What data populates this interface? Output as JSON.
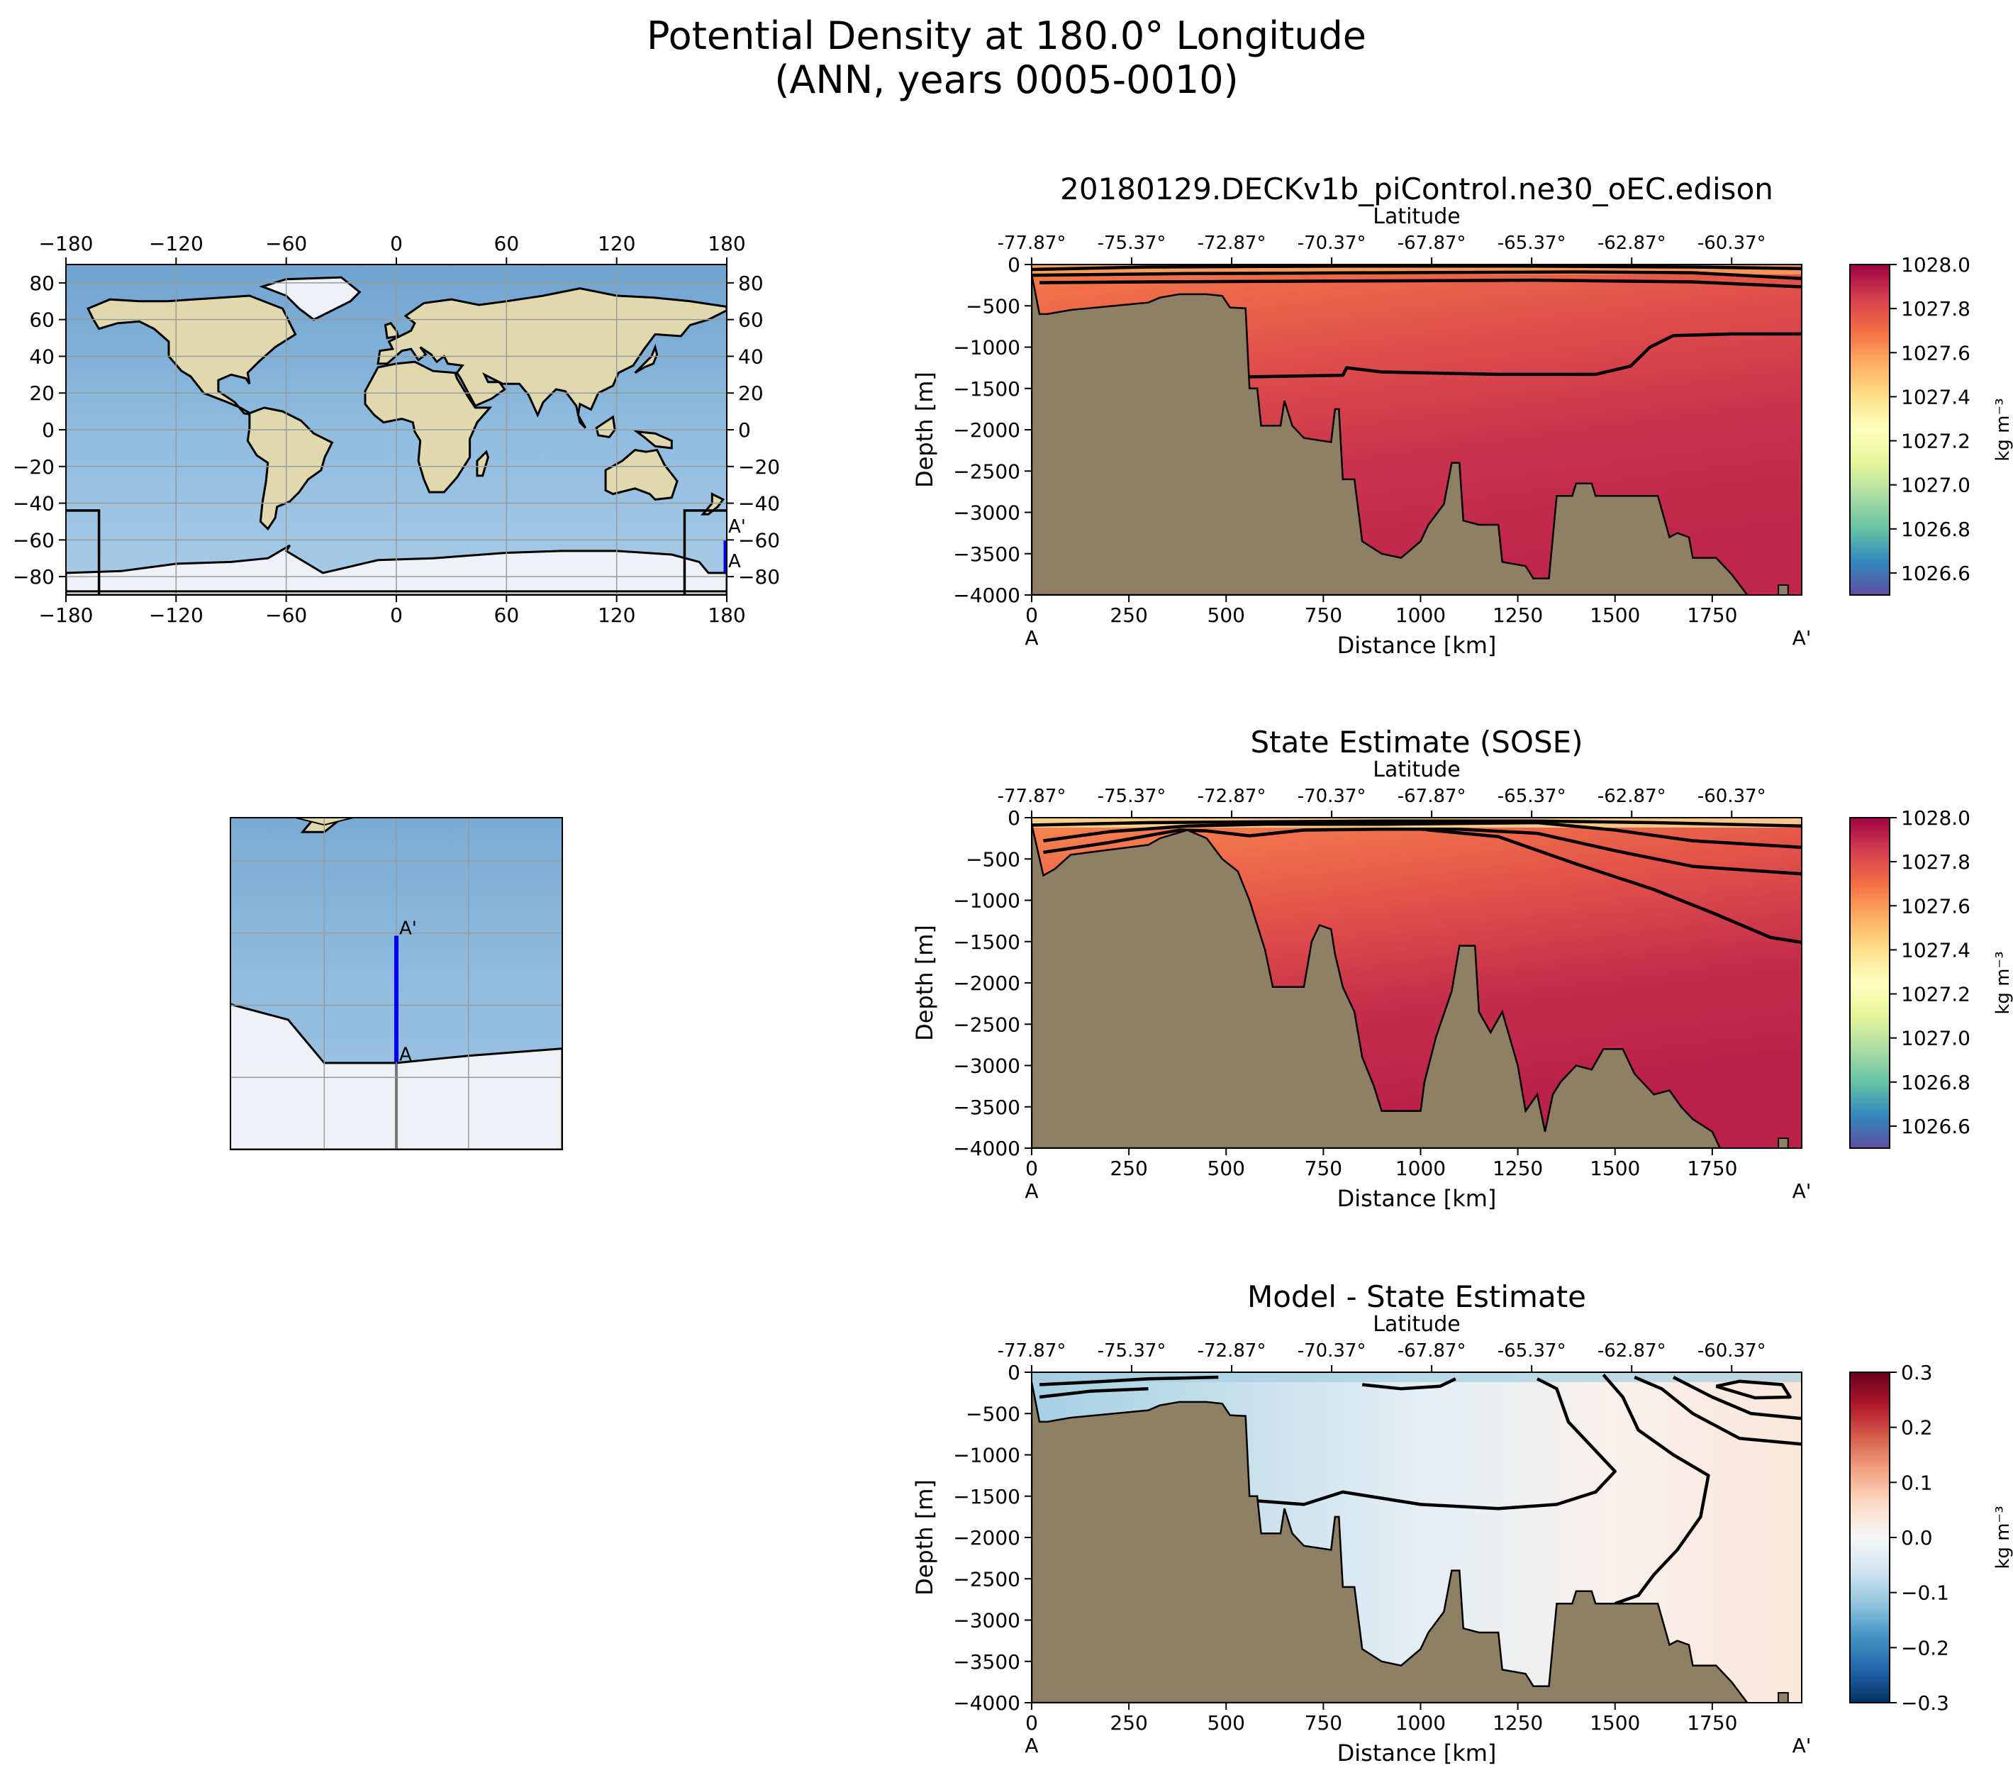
{
  "figure": {
    "title_line1": "Potential Density at 180.0° Longitude",
    "title_line2": "(ANN, years 0005-0010)",
    "colors": {
      "land_bathy": "#8f7f65",
      "ocean_map": "#86b4d8",
      "section_line": "#0000ee",
      "frame": "#000000"
    }
  },
  "chart_data": [
    {
      "type": "map",
      "id": "global_map",
      "projection": "PlateCarree",
      "xticks": [
        "−180",
        "−120",
        "−60",
        "0",
        "60",
        "120",
        "180"
      ],
      "yticks": [
        "80",
        "60",
        "40",
        "20",
        "0",
        "−20",
        "−40",
        "−60",
        "−80"
      ],
      "section_label_start": "A",
      "section_label_end": "A'",
      "section_lon": 180,
      "section_lat_start": -77.87,
      "section_lat_end": -60.37
    },
    {
      "type": "map",
      "id": "inset_map",
      "projection": "PlateCarree (zoom)",
      "section_label_start": "A",
      "section_label_end": "A'"
    },
    {
      "type": "heatmap",
      "id": "model_section",
      "title": "20180129.DECKv1b_piControl.ne30_oEC.edison",
      "top_axis_label": "Latitude",
      "top_ticks": [
        "-77.87°",
        "-75.37°",
        "-72.87°",
        "-70.37°",
        "-67.87°",
        "-65.37°",
        "-62.87°",
        "-60.37°"
      ],
      "xlabel": "Distance [km]",
      "ylabel": "Depth [m]",
      "xticks": [
        0,
        250,
        500,
        750,
        1000,
        1250,
        1500,
        1750
      ],
      "yticks": [
        "0",
        "−500",
        "−1000",
        "−1500",
        "−2000",
        "−2500",
        "−3000",
        "−3500",
        "−4000"
      ],
      "xlim": [
        0,
        1980
      ],
      "ylim": [
        -4000,
        0
      ],
      "endpoint_left": "A",
      "endpoint_right": "A'",
      "colorbar": {
        "cmap": "Spectral_r",
        "min": 1026.5,
        "max": 1028.0,
        "ticks": [
          "1028.0",
          "1027.8",
          "1027.6",
          "1027.4",
          "1027.2",
          "1027.0",
          "1026.8",
          "1026.6"
        ],
        "label": "kg m⁻³"
      },
      "bathymetry": [
        [
          0,
          -120
        ],
        [
          20,
          -600
        ],
        [
          40,
          -600
        ],
        [
          100,
          -550
        ],
        [
          300,
          -460
        ],
        [
          330,
          -400
        ],
        [
          380,
          -360
        ],
        [
          450,
          -360
        ],
        [
          490,
          -380
        ],
        [
          510,
          -520
        ],
        [
          550,
          -530
        ],
        [
          560,
          -1500
        ],
        [
          580,
          -1500
        ],
        [
          590,
          -1950
        ],
        [
          640,
          -1950
        ],
        [
          650,
          -1650
        ],
        [
          670,
          -1950
        ],
        [
          700,
          -2100
        ],
        [
          770,
          -2150
        ],
        [
          780,
          -1750
        ],
        [
          790,
          -1750
        ],
        [
          800,
          -2600
        ],
        [
          830,
          -2600
        ],
        [
          850,
          -3350
        ],
        [
          900,
          -3500
        ],
        [
          950,
          -3550
        ],
        [
          1000,
          -3350
        ],
        [
          1020,
          -3150
        ],
        [
          1060,
          -2900
        ],
        [
          1080,
          -2400
        ],
        [
          1100,
          -2400
        ],
        [
          1110,
          -3100
        ],
        [
          1150,
          -3150
        ],
        [
          1200,
          -3150
        ],
        [
          1210,
          -3600
        ],
        [
          1270,
          -3650
        ],
        [
          1290,
          -3800
        ],
        [
          1330,
          -3800
        ],
        [
          1350,
          -2800
        ],
        [
          1390,
          -2800
        ],
        [
          1400,
          -2650
        ],
        [
          1440,
          -2650
        ],
        [
          1450,
          -2800
        ],
        [
          1500,
          -2800
        ],
        [
          1610,
          -2800
        ],
        [
          1640,
          -3300
        ],
        [
          1660,
          -3250
        ],
        [
          1690,
          -3300
        ],
        [
          1700,
          -3550
        ],
        [
          1760,
          -3550
        ],
        [
          1800,
          -3750
        ],
        [
          1840,
          -4000
        ]
      ],
      "contours": [
        [
          [
            0,
            -60
          ],
          [
            300,
            -30
          ],
          [
            800,
            -20
          ],
          [
            1300,
            -20
          ],
          [
            1700,
            -30
          ],
          [
            1980,
            -50
          ]
        ],
        [
          [
            0,
            -130
          ],
          [
            400,
            -110
          ],
          [
            900,
            -100
          ],
          [
            1400,
            -90
          ],
          [
            1700,
            -100
          ],
          [
            1980,
            -170
          ]
        ],
        [
          [
            20,
            -220
          ],
          [
            300,
            -210
          ],
          [
            800,
            -200
          ],
          [
            1300,
            -190
          ],
          [
            1700,
            -210
          ],
          [
            1980,
            -270
          ]
        ],
        [
          [
            560,
            -1360
          ],
          [
            800,
            -1340
          ],
          [
            810,
            -1250
          ],
          [
            900,
            -1300
          ],
          [
            1200,
            -1330
          ],
          [
            1450,
            -1330
          ],
          [
            1540,
            -1230
          ],
          [
            1590,
            -1000
          ],
          [
            1650,
            -860
          ],
          [
            1800,
            -840
          ],
          [
            1980,
            -840
          ]
        ]
      ]
    },
    {
      "type": "heatmap",
      "id": "obs_section",
      "title": "State Estimate (SOSE)",
      "top_axis_label": "Latitude",
      "top_ticks": [
        "-77.87°",
        "-75.37°",
        "-72.87°",
        "-70.37°",
        "-67.87°",
        "-65.37°",
        "-62.87°",
        "-60.37°"
      ],
      "xlabel": "Distance [km]",
      "ylabel": "Depth [m]",
      "xticks": [
        0,
        250,
        500,
        750,
        1000,
        1250,
        1500,
        1750
      ],
      "yticks": [
        "0",
        "−500",
        "−1000",
        "−1500",
        "−2000",
        "−2500",
        "−3000",
        "−3500",
        "−4000"
      ],
      "xlim": [
        0,
        1980
      ],
      "ylim": [
        -4000,
        0
      ],
      "endpoint_left": "A",
      "endpoint_right": "A'",
      "colorbar": {
        "cmap": "Spectral_r",
        "min": 1026.5,
        "max": 1028.0,
        "ticks": [
          "1028.0",
          "1027.8",
          "1027.6",
          "1027.4",
          "1027.2",
          "1027.0",
          "1026.8",
          "1026.6"
        ],
        "label": "kg m⁻³"
      },
      "bathymetry": [
        [
          0,
          -80
        ],
        [
          30,
          -700
        ],
        [
          60,
          -620
        ],
        [
          100,
          -450
        ],
        [
          180,
          -400
        ],
        [
          300,
          -330
        ],
        [
          330,
          -250
        ],
        [
          400,
          -150
        ],
        [
          450,
          -250
        ],
        [
          490,
          -500
        ],
        [
          530,
          -650
        ],
        [
          560,
          -1000
        ],
        [
          580,
          -1300
        ],
        [
          600,
          -1600
        ],
        [
          620,
          -2050
        ],
        [
          700,
          -2050
        ],
        [
          720,
          -1500
        ],
        [
          740,
          -1300
        ],
        [
          770,
          -1350
        ],
        [
          780,
          -1650
        ],
        [
          800,
          -2050
        ],
        [
          830,
          -2350
        ],
        [
          850,
          -2900
        ],
        [
          880,
          -3250
        ],
        [
          900,
          -3550
        ],
        [
          1000,
          -3550
        ],
        [
          1010,
          -3200
        ],
        [
          1040,
          -2650
        ],
        [
          1080,
          -2100
        ],
        [
          1100,
          -1550
        ],
        [
          1140,
          -1550
        ],
        [
          1150,
          -2350
        ],
        [
          1180,
          -2600
        ],
        [
          1210,
          -2350
        ],
        [
          1250,
          -3000
        ],
        [
          1270,
          -3550
        ],
        [
          1300,
          -3350
        ],
        [
          1320,
          -3800
        ],
        [
          1340,
          -3350
        ],
        [
          1360,
          -3200
        ],
        [
          1400,
          -3000
        ],
        [
          1440,
          -3050
        ],
        [
          1470,
          -2800
        ],
        [
          1520,
          -2800
        ],
        [
          1550,
          -3100
        ],
        [
          1600,
          -3350
        ],
        [
          1640,
          -3300
        ],
        [
          1670,
          -3500
        ],
        [
          1700,
          -3650
        ],
        [
          1750,
          -3800
        ],
        [
          1770,
          -4000
        ]
      ],
      "contours": [
        [
          [
            0,
            -90
          ],
          [
            300,
            -60
          ],
          [
            900,
            -40
          ],
          [
            1300,
            -40
          ],
          [
            1600,
            -60
          ],
          [
            1980,
            -100
          ]
        ],
        [
          [
            30,
            -280
          ],
          [
            200,
            -170
          ],
          [
            400,
            -100
          ],
          [
            600,
            -80
          ],
          [
            900,
            -80
          ],
          [
            1300,
            -60
          ],
          [
            1500,
            -150
          ],
          [
            1700,
            -280
          ],
          [
            1980,
            -360
          ]
        ],
        [
          [
            30,
            -420
          ],
          [
            200,
            -300
          ],
          [
            380,
            -150
          ],
          [
            450,
            -160
          ],
          [
            560,
            -220
          ],
          [
            700,
            -150
          ],
          [
            900,
            -140
          ],
          [
            1100,
            -140
          ],
          [
            1300,
            -190
          ],
          [
            1500,
            -400
          ],
          [
            1700,
            -590
          ],
          [
            1980,
            -680
          ]
        ],
        [
          [
            1000,
            -140
          ],
          [
            1200,
            -230
          ],
          [
            1400,
            -560
          ],
          [
            1600,
            -870
          ],
          [
            1750,
            -1150
          ],
          [
            1900,
            -1450
          ],
          [
            1980,
            -1510
          ]
        ]
      ]
    },
    {
      "type": "heatmap",
      "id": "bias_section",
      "title": "Model - State Estimate",
      "top_axis_label": "Latitude",
      "top_ticks": [
        "-77.87°",
        "-75.37°",
        "-72.87°",
        "-70.37°",
        "-67.87°",
        "-65.37°",
        "-62.87°",
        "-60.37°"
      ],
      "xlabel": "Distance [km]",
      "ylabel": "Depth [m]",
      "xticks": [
        0,
        250,
        500,
        750,
        1000,
        1250,
        1500,
        1750
      ],
      "yticks": [
        "0",
        "−500",
        "−1000",
        "−1500",
        "−2000",
        "−2500",
        "−3000",
        "−3500",
        "−4000"
      ],
      "xlim": [
        0,
        1980
      ],
      "ylim": [
        -4000,
        0
      ],
      "endpoint_left": "A",
      "endpoint_right": "A'",
      "colorbar": {
        "cmap": "RdBu_r",
        "min": -0.3,
        "max": 0.3,
        "ticks": [
          "0.3",
          "0.2",
          "0.1",
          "0.0",
          "−0.1",
          "−0.2",
          "−0.3"
        ],
        "label": "kg m⁻³"
      },
      "bathymetry": [
        [
          0,
          -120
        ],
        [
          20,
          -600
        ],
        [
          40,
          -600
        ],
        [
          100,
          -550
        ],
        [
          300,
          -460
        ],
        [
          330,
          -400
        ],
        [
          380,
          -360
        ],
        [
          450,
          -360
        ],
        [
          490,
          -380
        ],
        [
          510,
          -520
        ],
        [
          550,
          -530
        ],
        [
          560,
          -1500
        ],
        [
          580,
          -1500
        ],
        [
          590,
          -1950
        ],
        [
          640,
          -1950
        ],
        [
          650,
          -1650
        ],
        [
          670,
          -1950
        ],
        [
          700,
          -2100
        ],
        [
          770,
          -2150
        ],
        [
          780,
          -1750
        ],
        [
          790,
          -1750
        ],
        [
          800,
          -2600
        ],
        [
          830,
          -2600
        ],
        [
          850,
          -3350
        ],
        [
          900,
          -3500
        ],
        [
          950,
          -3550
        ],
        [
          1000,
          -3350
        ],
        [
          1020,
          -3150
        ],
        [
          1060,
          -2900
        ],
        [
          1080,
          -2400
        ],
        [
          1100,
          -2400
        ],
        [
          1110,
          -3100
        ],
        [
          1150,
          -3150
        ],
        [
          1200,
          -3150
        ],
        [
          1210,
          -3600
        ],
        [
          1270,
          -3650
        ],
        [
          1290,
          -3800
        ],
        [
          1330,
          -3800
        ],
        [
          1350,
          -2800
        ],
        [
          1390,
          -2800
        ],
        [
          1400,
          -2650
        ],
        [
          1440,
          -2650
        ],
        [
          1450,
          -2800
        ],
        [
          1500,
          -2800
        ],
        [
          1610,
          -2800
        ],
        [
          1640,
          -3300
        ],
        [
          1660,
          -3250
        ],
        [
          1690,
          -3300
        ],
        [
          1700,
          -3550
        ],
        [
          1760,
          -3550
        ],
        [
          1800,
          -3750
        ],
        [
          1840,
          -4000
        ]
      ],
      "contours": [
        [
          [
            560,
            -1550
          ],
          [
            700,
            -1600
          ],
          [
            800,
            -1450
          ],
          [
            1000,
            -1600
          ],
          [
            1200,
            -1650
          ],
          [
            1350,
            -1600
          ],
          [
            1450,
            -1450
          ],
          [
            1500,
            -1200
          ],
          [
            1380,
            -600
          ],
          [
            1350,
            -200
          ],
          [
            1300,
            -80
          ]
        ],
        [
          [
            850,
            -150
          ],
          [
            950,
            -200
          ],
          [
            1050,
            -170
          ],
          [
            1090,
            -80
          ]
        ],
        [
          [
            20,
            -150
          ],
          [
            150,
            -120
          ],
          [
            300,
            -80
          ],
          [
            480,
            -60
          ]
        ],
        [
          [
            20,
            -300
          ],
          [
            150,
            -230
          ],
          [
            300,
            -200
          ]
        ],
        [
          [
            1470,
            -30
          ],
          [
            1520,
            -300
          ],
          [
            1560,
            -700
          ],
          [
            1650,
            -1000
          ],
          [
            1740,
            -1250
          ],
          [
            1720,
            -1750
          ],
          [
            1660,
            -2150
          ],
          [
            1600,
            -2450
          ],
          [
            1560,
            -2700
          ],
          [
            1500,
            -2800
          ]
        ],
        [
          [
            1550,
            -60
          ],
          [
            1620,
            -200
          ],
          [
            1700,
            -500
          ],
          [
            1820,
            -800
          ],
          [
            1980,
            -870
          ]
        ],
        [
          [
            1650,
            -60
          ],
          [
            1750,
            -300
          ],
          [
            1850,
            -500
          ],
          [
            1980,
            -560
          ]
        ],
        [
          [
            1760,
            -170
          ],
          [
            1860,
            -310
          ],
          [
            1950,
            -300
          ],
          [
            1930,
            -150
          ],
          [
            1820,
            -110
          ],
          [
            1760,
            -170
          ]
        ]
      ]
    }
  ]
}
